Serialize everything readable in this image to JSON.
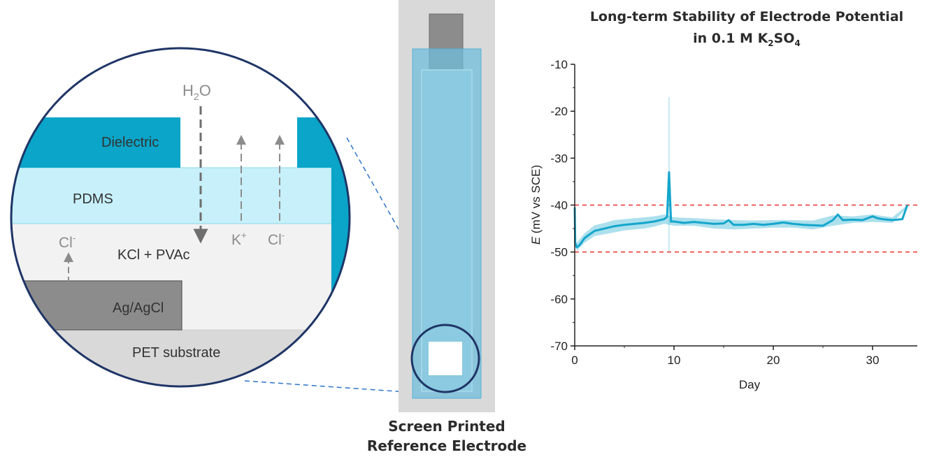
{
  "diagram": {
    "layers": {
      "dielectric": "Dielectric",
      "pdms": "PDMS",
      "kcl_pvac": "KCl + PVAc",
      "ag_agcl": "Ag/AgCl",
      "pet": "PET substrate"
    },
    "ions": {
      "water": "H",
      "water_sub": "2",
      "water_tail": "O",
      "k_base": "K",
      "k_sup": "+",
      "cl_base": "Cl",
      "cl_sup": "-"
    },
    "electrode_caption": [
      "Screen Printed",
      "Reference Electrode"
    ],
    "colors": {
      "dielectric": "#0aa5c8",
      "pdms": "#c7f0fa",
      "kcl": "#f2f2f2",
      "ag": "#8c8c8c",
      "pet": "#d9d9d9",
      "circle": "#1f3566",
      "electrode_body": "#6fbedb",
      "line": "#14a6cc",
      "limit": "#e8322e"
    }
  },
  "chart_data": {
    "type": "line",
    "title": "Long-term Stability of Electrode Potential",
    "title_line2_prefix": "in 0.1 M K",
    "title_sub1": "2",
    "title_mid": "SO",
    "title_sub2": "4",
    "xlabel": "Day",
    "ylabel_italic": "E",
    "ylabel_rest": " (mV vs SCE)",
    "xlim": [
      0,
      35
    ],
    "ylim": [
      -70,
      -10
    ],
    "xticks": [
      0,
      10,
      20,
      30
    ],
    "yticks": [
      -10,
      -20,
      -30,
      -40,
      -50,
      -60,
      -70
    ],
    "reference_lines": [
      -40,
      -50
    ],
    "series": [
      {
        "x": [
          0,
          0.05,
          0.2,
          0.5,
          1,
          2,
          3,
          4,
          5,
          6,
          7,
          8,
          9,
          9.3,
          9.5,
          9.7,
          10,
          11,
          12,
          13,
          14,
          15,
          15.5,
          16,
          17,
          18,
          19,
          20,
          21,
          22,
          23,
          24,
          25,
          26,
          26.5,
          27,
          28,
          29,
          30,
          30.5,
          31,
          32,
          33,
          33.5
        ],
        "y": [
          -40.5,
          -48,
          -49,
          -48.5,
          -47,
          -45.5,
          -45,
          -44.5,
          -44.2,
          -44,
          -43.8,
          -43.5,
          -43,
          -42.5,
          -33,
          -43.5,
          -43.5,
          -43.8,
          -43.6,
          -43.8,
          -44,
          -43.9,
          -43.2,
          -44.2,
          -44.2,
          -44,
          -44.2,
          -44,
          -43.7,
          -44,
          -44.2,
          -44.3,
          -44.4,
          -43.2,
          -42,
          -43.2,
          -43.1,
          -43.2,
          -42.4,
          -42.8,
          -43,
          -43.2,
          -43,
          -40
        ]
      }
    ],
    "band": {
      "x": [
        0.2,
        1,
        2,
        3,
        4,
        5,
        6,
        7,
        8,
        9,
        10,
        12,
        14,
        16,
        18,
        20,
        22,
        24,
        26,
        28,
        30,
        32,
        33.5
      ],
      "upper": [
        -48,
        -46,
        -44.3,
        -43.8,
        -43.2,
        -43,
        -42.8,
        -42.6,
        -42.4,
        -42,
        -42.6,
        -42.8,
        -43,
        -43.2,
        -43.3,
        -43.2,
        -43.2,
        -43.3,
        -42.2,
        -42.4,
        -42,
        -42.6,
        -40
      ],
      "lower": [
        -49.8,
        -48,
        -46.6,
        -46.2,
        -45.8,
        -45.4,
        -45.2,
        -45,
        -44.6,
        -44,
        -44.4,
        -44.4,
        -45,
        -45.2,
        -45,
        -44.8,
        -44.8,
        -45.2,
        -44.4,
        -43.8,
        -43.6,
        -43.8,
        -40.5
      ]
    },
    "spike": {
      "x": 9.5,
      "y_top": -17,
      "y_bottom": -50
    }
  }
}
